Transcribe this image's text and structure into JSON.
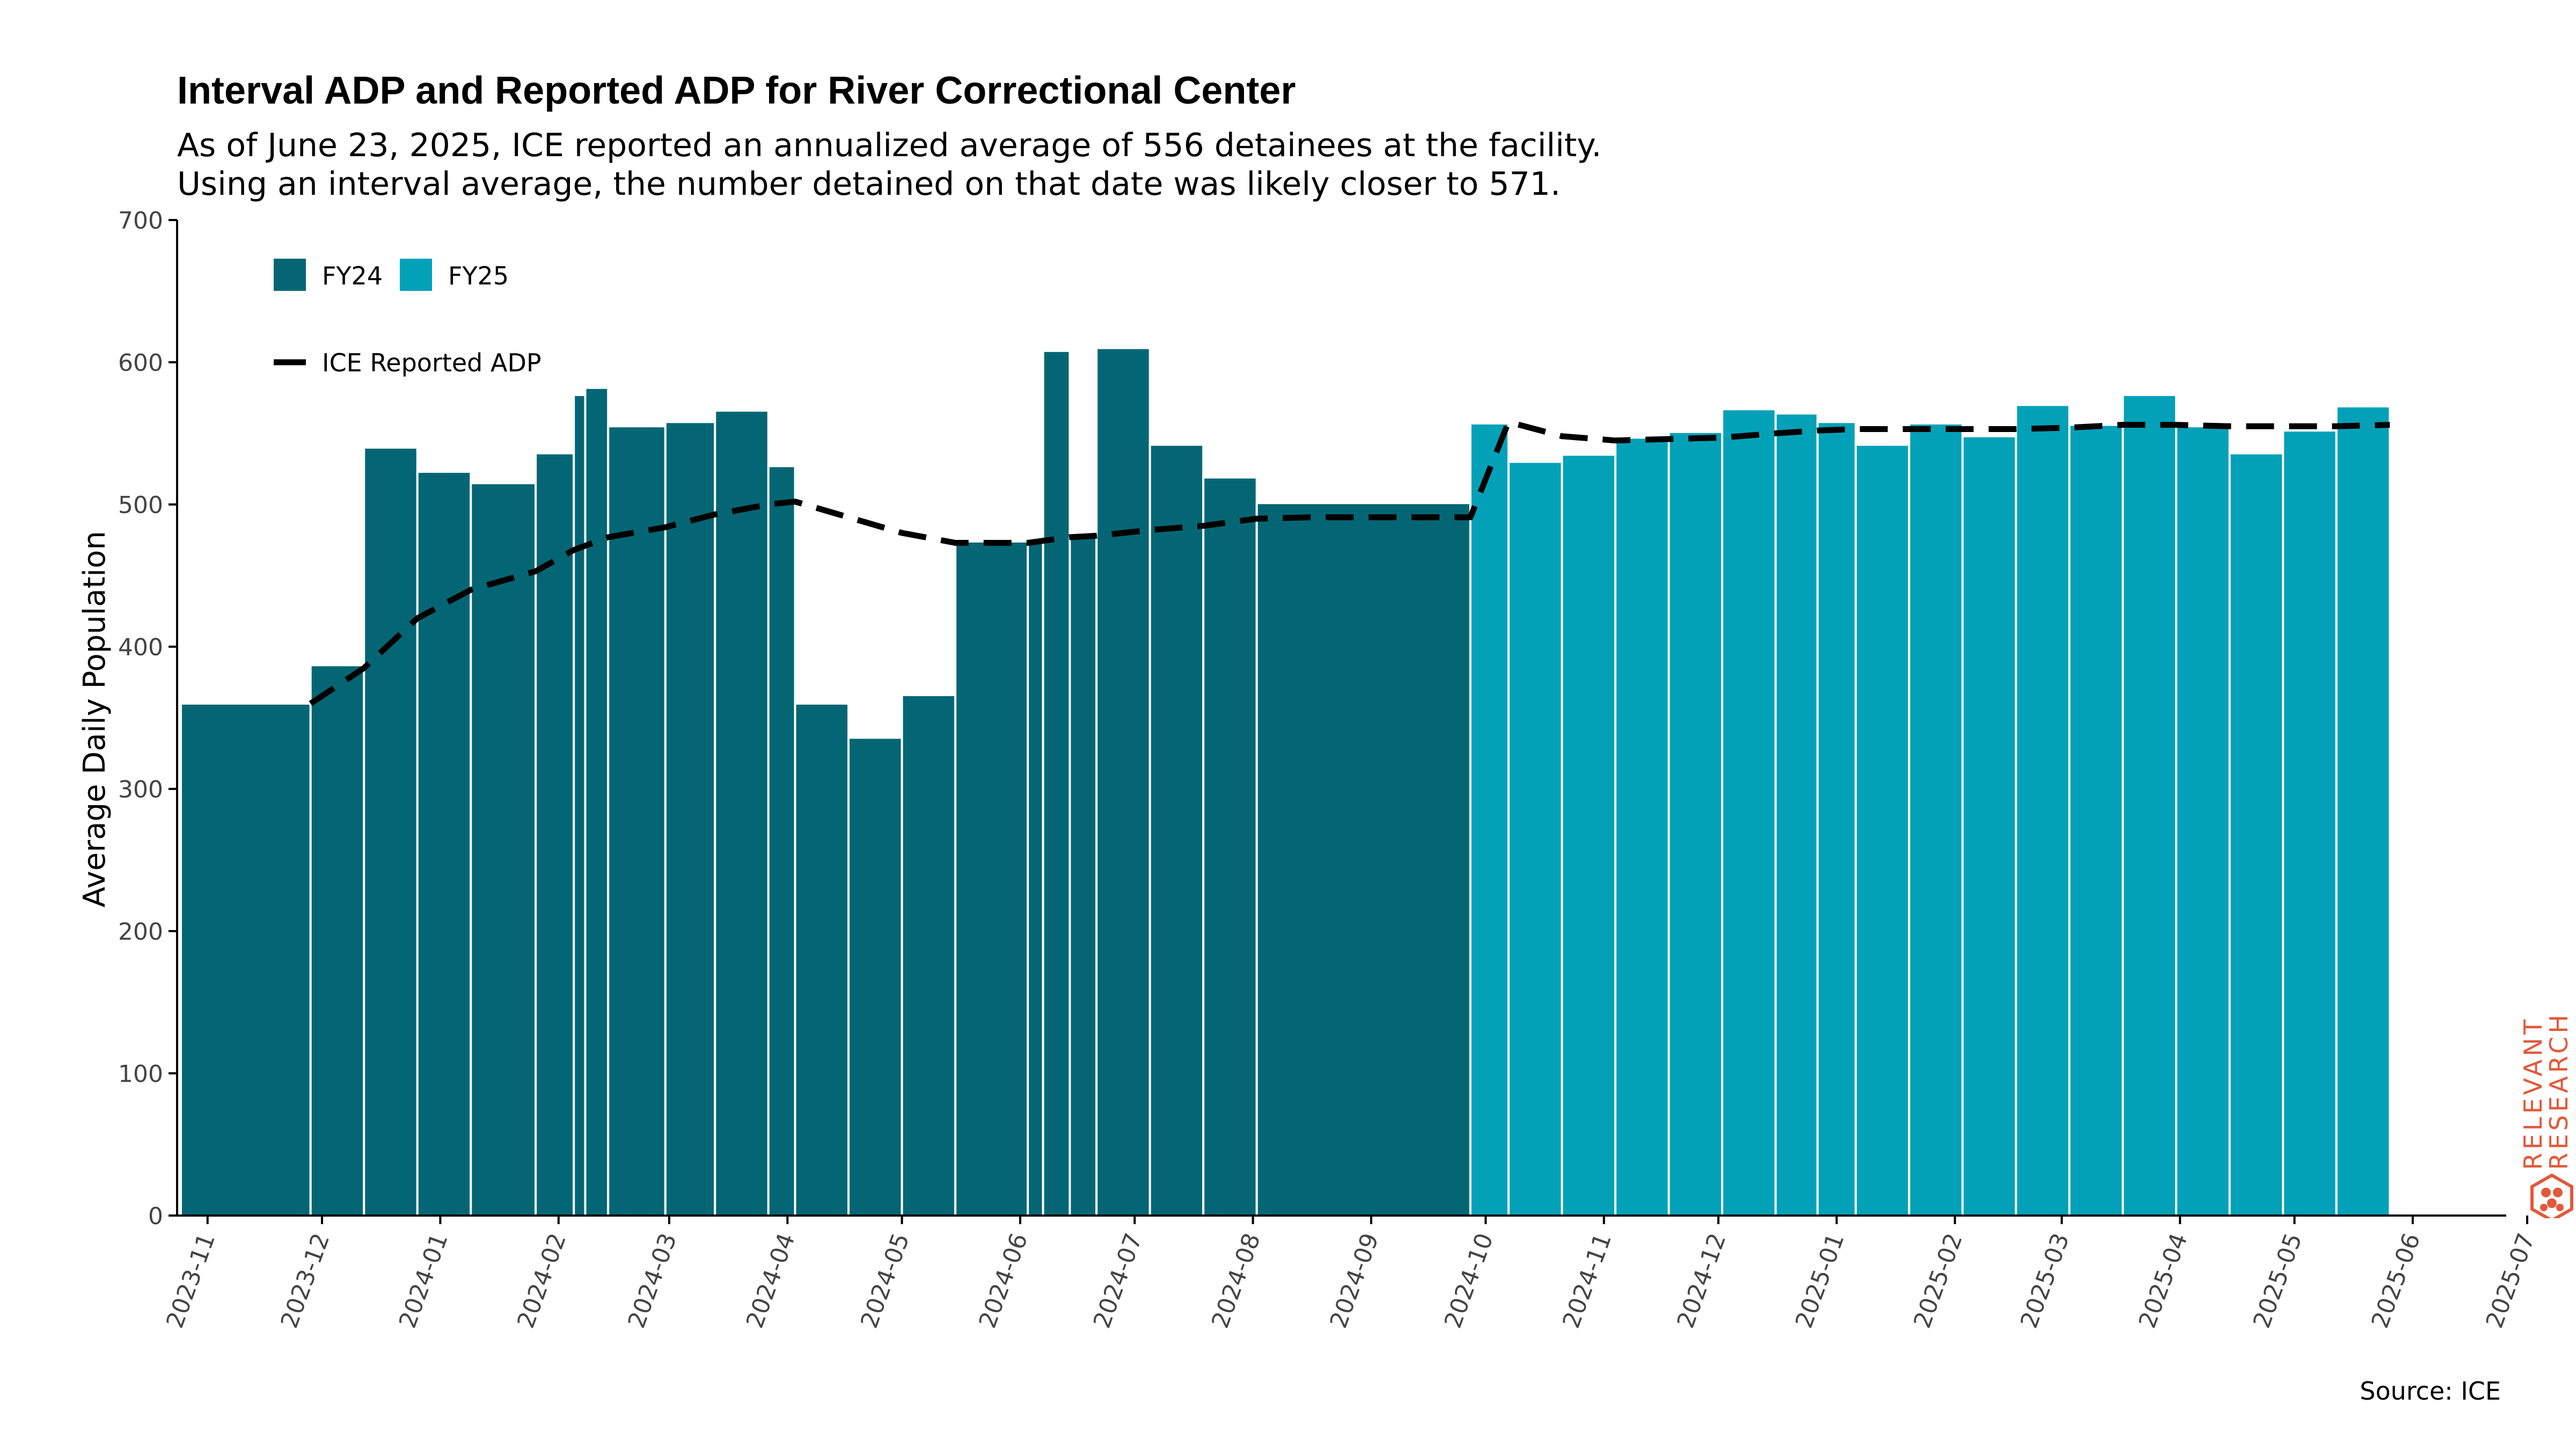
{
  "title": "Interval ADP and Reported ADP for River Correctional Center",
  "subtitle_lines": [
    "As of June 23, 2025, ICE reported an annualized average of 556 detainees at the facility.",
    "Using an interval average, the number detained on that date was likely closer to 571."
  ],
  "source": "Source: ICE",
  "logo_text": [
    "RELEVANT",
    "RESEARCH"
  ],
  "colors": {
    "fy24": "#046675",
    "fy25": "#03a1b8",
    "line": "#000000",
    "logo": "#e2593a"
  },
  "chart_data": {
    "type": "bar",
    "ylabel": "Average Daily Population",
    "xlabel": "",
    "ylim": [
      0,
      700
    ],
    "yticks": [
      0,
      100,
      200,
      300,
      400,
      500,
      600,
      700
    ],
    "xticks": [
      "2023-11",
      "2023-12",
      "2024-01",
      "2024-02",
      "2024-03",
      "2024-04",
      "2024-05",
      "2024-06",
      "2024-07",
      "2024-08",
      "2024-09",
      "2024-10",
      "2024-11",
      "2024-12",
      "2025-01",
      "2025-02",
      "2025-03",
      "2025-04",
      "2025-05",
      "2025-06",
      "2025-07"
    ],
    "legend": {
      "bars": [
        "FY24",
        "FY25"
      ],
      "line": "ICE Reported ADP",
      "placement": "top-left"
    },
    "series": [
      {
        "name": "FY24",
        "bars": [
          {
            "start": "2023-10-25",
            "end": "2023-11-28",
            "value": 360
          },
          {
            "start": "2023-11-28",
            "end": "2023-12-12",
            "value": 387
          },
          {
            "start": "2023-12-12",
            "end": "2023-12-26",
            "value": 540
          },
          {
            "start": "2023-12-26",
            "end": "2024-01-09",
            "value": 523
          },
          {
            "start": "2024-01-09",
            "end": "2024-01-26",
            "value": 515
          },
          {
            "start": "2024-01-26",
            "end": "2024-02-05",
            "value": 536
          },
          {
            "start": "2024-02-05",
            "end": "2024-02-08",
            "value": 577
          },
          {
            "start": "2024-02-08",
            "end": "2024-02-14",
            "value": 582
          },
          {
            "start": "2024-02-14",
            "end": "2024-02-29",
            "value": 555
          },
          {
            "start": "2024-02-29",
            "end": "2024-03-13",
            "value": 558
          },
          {
            "start": "2024-03-13",
            "end": "2024-03-27",
            "value": 566
          },
          {
            "start": "2024-03-27",
            "end": "2024-04-03",
            "value": 527
          },
          {
            "start": "2024-04-03",
            "end": "2024-04-17",
            "value": 360
          },
          {
            "start": "2024-04-17",
            "end": "2024-05-01",
            "value": 336
          },
          {
            "start": "2024-05-01",
            "end": "2024-05-15",
            "value": 366
          },
          {
            "start": "2024-05-15",
            "end": "2024-06-03",
            "value": 474
          },
          {
            "start": "2024-06-03",
            "end": "2024-06-07",
            "value": 474
          },
          {
            "start": "2024-06-07",
            "end": "2024-06-14",
            "value": 608
          },
          {
            "start": "2024-06-14",
            "end": "2024-06-21",
            "value": 477
          },
          {
            "start": "2024-06-21",
            "end": "2024-07-05",
            "value": 610
          },
          {
            "start": "2024-07-05",
            "end": "2024-07-19",
            "value": 542
          },
          {
            "start": "2024-07-19",
            "end": "2024-08-02",
            "value": 519
          },
          {
            "start": "2024-08-02",
            "end": "2024-09-27",
            "value": 501
          }
        ]
      },
      {
        "name": "FY25",
        "bars": [
          {
            "start": "2024-09-27",
            "end": "2024-10-07",
            "value": 557
          },
          {
            "start": "2024-10-07",
            "end": "2024-10-21",
            "value": 530
          },
          {
            "start": "2024-10-21",
            "end": "2024-11-04",
            "value": 535
          },
          {
            "start": "2024-11-04",
            "end": "2024-11-18",
            "value": 547
          },
          {
            "start": "2024-11-18",
            "end": "2024-12-02",
            "value": 551
          },
          {
            "start": "2024-12-02",
            "end": "2024-12-16",
            "value": 567
          },
          {
            "start": "2024-12-16",
            "end": "2024-12-27",
            "value": 564
          },
          {
            "start": "2024-12-27",
            "end": "2025-01-06",
            "value": 558
          },
          {
            "start": "2025-01-06",
            "end": "2025-01-20",
            "value": 542
          },
          {
            "start": "2025-01-20",
            "end": "2025-02-03",
            "value": 557
          },
          {
            "start": "2025-02-03",
            "end": "2025-02-17",
            "value": 548
          },
          {
            "start": "2025-02-17",
            "end": "2025-03-03",
            "value": 570
          },
          {
            "start": "2025-03-03",
            "end": "2025-03-17",
            "value": 556
          },
          {
            "start": "2025-03-17",
            "end": "2025-03-31",
            "value": 577
          },
          {
            "start": "2025-03-31",
            "end": "2025-04-14",
            "value": 555
          },
          {
            "start": "2025-04-14",
            "end": "2025-04-28",
            "value": 536
          },
          {
            "start": "2025-04-28",
            "end": "2025-05-12",
            "value": 552
          },
          {
            "start": "2025-05-12",
            "end": "2025-05-26",
            "value": 569
          }
        ]
      }
    ],
    "line": {
      "name": "ICE Reported ADP",
      "points": [
        {
          "date": "2023-11-28",
          "value": 360
        },
        {
          "date": "2023-12-12",
          "value": 385
        },
        {
          "date": "2023-12-26",
          "value": 420
        },
        {
          "date": "2024-01-09",
          "value": 440
        },
        {
          "date": "2024-01-26",
          "value": 453
        },
        {
          "date": "2024-02-05",
          "value": 468
        },
        {
          "date": "2024-02-14",
          "value": 477
        },
        {
          "date": "2024-02-29",
          "value": 484
        },
        {
          "date": "2024-03-13",
          "value": 493
        },
        {
          "date": "2024-03-27",
          "value": 500
        },
        {
          "date": "2024-04-03",
          "value": 502
        },
        {
          "date": "2024-04-17",
          "value": 491
        },
        {
          "date": "2024-05-01",
          "value": 480
        },
        {
          "date": "2024-05-15",
          "value": 473
        },
        {
          "date": "2024-06-03",
          "value": 473
        },
        {
          "date": "2024-06-14",
          "value": 477
        },
        {
          "date": "2024-06-21",
          "value": 478
        },
        {
          "date": "2024-07-05",
          "value": 482
        },
        {
          "date": "2024-07-19",
          "value": 485
        },
        {
          "date": "2024-08-02",
          "value": 490
        },
        {
          "date": "2024-08-16",
          "value": 491
        },
        {
          "date": "2024-09-27",
          "value": 491
        },
        {
          "date": "2024-10-07",
          "value": 558
        },
        {
          "date": "2024-10-21",
          "value": 548
        },
        {
          "date": "2024-11-04",
          "value": 545
        },
        {
          "date": "2024-11-18",
          "value": 546
        },
        {
          "date": "2024-12-02",
          "value": 547
        },
        {
          "date": "2024-12-16",
          "value": 550
        },
        {
          "date": "2024-12-27",
          "value": 552
        },
        {
          "date": "2025-01-06",
          "value": 553
        },
        {
          "date": "2025-01-20",
          "value": 553
        },
        {
          "date": "2025-02-03",
          "value": 553
        },
        {
          "date": "2025-02-17",
          "value": 553
        },
        {
          "date": "2025-03-03",
          "value": 554
        },
        {
          "date": "2025-03-17",
          "value": 556
        },
        {
          "date": "2025-03-31",
          "value": 556
        },
        {
          "date": "2025-04-14",
          "value": 555
        },
        {
          "date": "2025-04-28",
          "value": 555
        },
        {
          "date": "2025-05-12",
          "value": 555
        },
        {
          "date": "2025-05-26",
          "value": 556
        }
      ]
    }
  }
}
